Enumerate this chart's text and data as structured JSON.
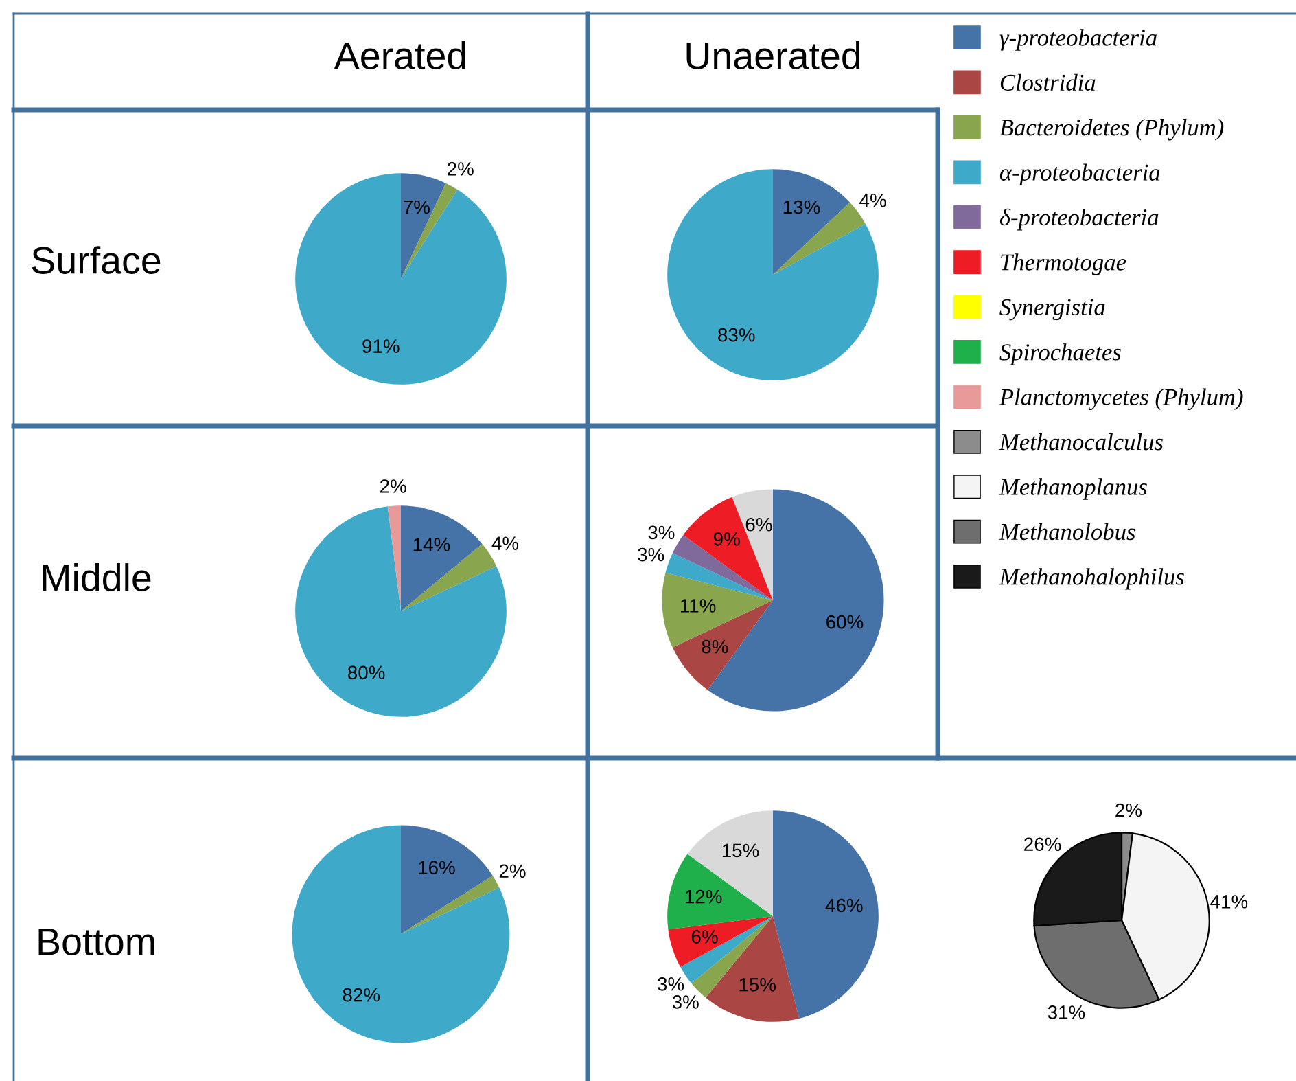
{
  "chart_data": [
    {
      "type": "other",
      "annotations": [
        "Aerated",
        "Unaerated",
        "Surface",
        "Middle",
        "Bottom"
      ]
    },
    {
      "type": "pie",
      "categories": [
        null,
        null,
        null
      ],
      "values": [
        7,
        2,
        91
      ],
      "colors": [
        "#4572a7",
        "#89a54e",
        "#3ea9c8"
      ],
      "value_labels": [
        "7%",
        "2%",
        "91%"
      ]
    },
    {
      "type": "pie",
      "categories": [
        null,
        null,
        null
      ],
      "values": [
        13,
        4,
        83
      ],
      "colors": [
        "#4572a7",
        "#89a54e",
        "#3ea9c8"
      ],
      "value_labels": [
        "13%",
        "4%",
        "83%"
      ]
    },
    {
      "type": "pie",
      "categories": [
        null,
        null,
        null,
        null
      ],
      "values": [
        14,
        4,
        80,
        2
      ],
      "colors": [
        "#4572a7",
        "#89a54e",
        "#3ea9c8",
        "#e89a9a"
      ],
      "value_labels": [
        "14%",
        "4%",
        "80%",
        "2%"
      ]
    },
    {
      "type": "pie",
      "categories": [
        "γ-proteobacteria",
        "Clostridia",
        "Bacteroidetes (Phylum)",
        "α-proteobacteria",
        "δ-proteobacteria",
        "Thermotogae",
        "Synergistia",
        "Spirochaetes",
        "Planctomycetes (Phylum)",
        null
      ],
      "values": [
        60,
        8,
        11,
        3,
        3,
        9,
        0,
        0,
        0,
        6
      ],
      "colors": [
        "#4572a7",
        "#aa4643",
        "#89a54e",
        "#3ea9c8",
        "#80699b",
        "#ee1c25",
        "#ffff00",
        "#1fb04b",
        "#e89a9a",
        "#d9d9d9"
      ],
      "value_labels": [
        "60%",
        "8%",
        "11%",
        "3%",
        "3%",
        "9%",
        null,
        null,
        null,
        "6%"
      ],
      "legend": "right"
    },
    {
      "type": "pie",
      "categories": [
        null,
        null,
        null
      ],
      "values": [
        16,
        2,
        82
      ],
      "colors": [
        "#4572a7",
        "#89a54e",
        "#3ea9c8"
      ],
      "value_labels": [
        "16%",
        "2%",
        "82%"
      ]
    },
    {
      "type": "pie",
      "categories": [
        null,
        null,
        null,
        null,
        null,
        null,
        null
      ],
      "values": [
        46,
        15,
        3,
        3,
        6,
        12,
        15
      ],
      "colors": [
        "#4572a7",
        "#aa4643",
        "#89a54e",
        "#3ea9c8",
        "#ee1c25",
        "#1fb04b",
        "#d9d9d9"
      ],
      "value_labels": [
        "46%",
        "15%",
        "3%",
        "3%",
        "6%",
        "12%",
        "15%"
      ]
    },
    {
      "type": "pie",
      "categories": [
        "Methanocalculus",
        "Methanoplanus",
        "Methanolobus",
        "Methanohalophilus"
      ],
      "values": [
        2,
        41,
        31,
        26
      ],
      "colors": [
        "#8c8c8c",
        "#f4f4f4",
        "#6e6e6e",
        "#1a1a1a"
      ],
      "value_labels": [
        "2%",
        "41%",
        "31%",
        "26%"
      ],
      "legend": "top"
    }
  ]
}
